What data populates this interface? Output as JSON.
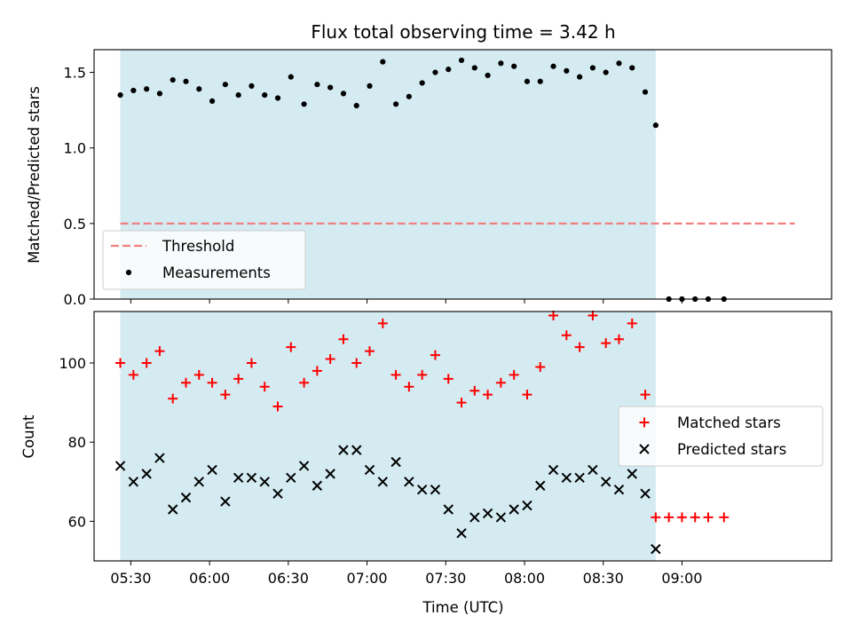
{
  "chart_data": [
    {
      "type": "scatter",
      "title": "Flux total observing time = 3.42 h",
      "xlabel": "",
      "ylabel": "Matched/Predicted stars",
      "ylim": [
        0,
        1.65
      ],
      "xlim": [
        "05:16",
        "09:57"
      ],
      "yticks": [
        0.0,
        0.5,
        1.0,
        1.5
      ],
      "ytick_labels": [
        "0.0",
        "0.5",
        "1.0",
        "1.5"
      ],
      "shaded_span": [
        "05:26",
        "08:50"
      ],
      "shaded_color": "#d4ebf1",
      "threshold": {
        "name": "Threshold",
        "y": 0.5,
        "x_range": [
          "05:26",
          "09:43"
        ],
        "color": "#f08080",
        "style": "dashed"
      },
      "legend_position": "lower-left",
      "series": [
        {
          "name": "Measurements",
          "marker": "dot",
          "color": "#000000",
          "points": [
            [
              "05:26",
              1.35
            ],
            [
              "05:31",
              1.38
            ],
            [
              "05:36",
              1.39
            ],
            [
              "05:41",
              1.36
            ],
            [
              "05:46",
              1.45
            ],
            [
              "05:51",
              1.44
            ],
            [
              "05:56",
              1.39
            ],
            [
              "06:01",
              1.31
            ],
            [
              "06:06",
              1.42
            ],
            [
              "06:11",
              1.35
            ],
            [
              "06:16",
              1.41
            ],
            [
              "06:21",
              1.35
            ],
            [
              "06:26",
              1.33
            ],
            [
              "06:31",
              1.47
            ],
            [
              "06:36",
              1.29
            ],
            [
              "06:41",
              1.42
            ],
            [
              "06:46",
              1.4
            ],
            [
              "06:51",
              1.36
            ],
            [
              "06:56",
              1.28
            ],
            [
              "07:01",
              1.41
            ],
            [
              "07:06",
              1.57
            ],
            [
              "07:11",
              1.29
            ],
            [
              "07:16",
              1.34
            ],
            [
              "07:21",
              1.43
            ],
            [
              "07:26",
              1.5
            ],
            [
              "07:31",
              1.52
            ],
            [
              "07:36",
              1.58
            ],
            [
              "07:41",
              1.53
            ],
            [
              "07:46",
              1.48
            ],
            [
              "07:51",
              1.56
            ],
            [
              "07:56",
              1.54
            ],
            [
              "08:01",
              1.44
            ],
            [
              "08:06",
              1.44
            ],
            [
              "08:11",
              1.54
            ],
            [
              "08:16",
              1.51
            ],
            [
              "08:21",
              1.47
            ],
            [
              "08:26",
              1.53
            ],
            [
              "08:31",
              1.5
            ],
            [
              "08:36",
              1.56
            ],
            [
              "08:41",
              1.53
            ],
            [
              "08:46",
              1.37
            ],
            [
              "08:50",
              1.15
            ],
            [
              "08:55",
              0.0
            ],
            [
              "09:00",
              0.0
            ],
            [
              "09:05",
              0.0
            ],
            [
              "09:10",
              0.0
            ],
            [
              "09:16",
              0.0
            ]
          ]
        }
      ]
    },
    {
      "type": "scatter",
      "title": "",
      "xlabel": "Time (UTC)",
      "ylabel": "Count",
      "ylim": [
        50,
        113
      ],
      "xlim": [
        "05:16",
        "09:57"
      ],
      "yticks": [
        60,
        80,
        100
      ],
      "ytick_labels": [
        "60",
        "80",
        "100"
      ],
      "xtick_labels": [
        "05:30",
        "06:00",
        "06:30",
        "07:00",
        "07:30",
        "08:00",
        "08:30",
        "09:00"
      ],
      "shaded_span": [
        "05:26",
        "08:50"
      ],
      "shaded_color": "#d4ebf1",
      "legend_position": "center-right",
      "series": [
        {
          "name": "Matched stars",
          "marker": "plus",
          "color": "#ff0000",
          "points": [
            [
              "05:26",
              100
            ],
            [
              "05:31",
              97
            ],
            [
              "05:36",
              100
            ],
            [
              "05:41",
              103
            ],
            [
              "05:46",
              91
            ],
            [
              "05:51",
              95
            ],
            [
              "05:56",
              97
            ],
            [
              "06:01",
              95
            ],
            [
              "06:06",
              92
            ],
            [
              "06:11",
              96
            ],
            [
              "06:16",
              100
            ],
            [
              "06:21",
              94
            ],
            [
              "06:26",
              89
            ],
            [
              "06:31",
              104
            ],
            [
              "06:36",
              95
            ],
            [
              "06:41",
              98
            ],
            [
              "06:46",
              101
            ],
            [
              "06:51",
              106
            ],
            [
              "06:56",
              100
            ],
            [
              "07:01",
              103
            ],
            [
              "07:06",
              110
            ],
            [
              "07:11",
              97
            ],
            [
              "07:16",
              94
            ],
            [
              "07:21",
              97
            ],
            [
              "07:26",
              102
            ],
            [
              "07:31",
              96
            ],
            [
              "07:36",
              90
            ],
            [
              "07:41",
              93
            ],
            [
              "07:46",
              92
            ],
            [
              "07:51",
              95
            ],
            [
              "07:56",
              97
            ],
            [
              "08:01",
              92
            ],
            [
              "08:06",
              99
            ],
            [
              "08:11",
              112
            ],
            [
              "08:16",
              107
            ],
            [
              "08:21",
              104
            ],
            [
              "08:26",
              112
            ],
            [
              "08:31",
              105
            ],
            [
              "08:36",
              106
            ],
            [
              "08:41",
              110
            ],
            [
              "08:46",
              92
            ],
            [
              "08:50",
              61
            ],
            [
              "08:55",
              61
            ],
            [
              "09:00",
              61
            ],
            [
              "09:05",
              61
            ],
            [
              "09:10",
              61
            ],
            [
              "09:16",
              61
            ]
          ]
        },
        {
          "name": "Predicted stars",
          "marker": "x",
          "color": "#000000",
          "points": [
            [
              "05:26",
              74
            ],
            [
              "05:31",
              70
            ],
            [
              "05:36",
              72
            ],
            [
              "05:41",
              76
            ],
            [
              "05:46",
              63
            ],
            [
              "05:51",
              66
            ],
            [
              "05:56",
              70
            ],
            [
              "06:01",
              73
            ],
            [
              "06:06",
              65
            ],
            [
              "06:11",
              71
            ],
            [
              "06:16",
              71
            ],
            [
              "06:21",
              70
            ],
            [
              "06:26",
              67
            ],
            [
              "06:31",
              71
            ],
            [
              "06:36",
              74
            ],
            [
              "06:41",
              69
            ],
            [
              "06:46",
              72
            ],
            [
              "06:51",
              78
            ],
            [
              "06:56",
              78
            ],
            [
              "07:01",
              73
            ],
            [
              "07:06",
              70
            ],
            [
              "07:11",
              75
            ],
            [
              "07:16",
              70
            ],
            [
              "07:21",
              68
            ],
            [
              "07:26",
              68
            ],
            [
              "07:31",
              63
            ],
            [
              "07:36",
              57
            ],
            [
              "07:41",
              61
            ],
            [
              "07:46",
              62
            ],
            [
              "07:51",
              61
            ],
            [
              "07:56",
              63
            ],
            [
              "08:01",
              64
            ],
            [
              "08:06",
              69
            ],
            [
              "08:11",
              73
            ],
            [
              "08:16",
              71
            ],
            [
              "08:21",
              71
            ],
            [
              "08:26",
              73
            ],
            [
              "08:31",
              70
            ],
            [
              "08:36",
              68
            ],
            [
              "08:41",
              72
            ],
            [
              "08:46",
              67
            ],
            [
              "08:50",
              53
            ]
          ]
        }
      ]
    }
  ]
}
